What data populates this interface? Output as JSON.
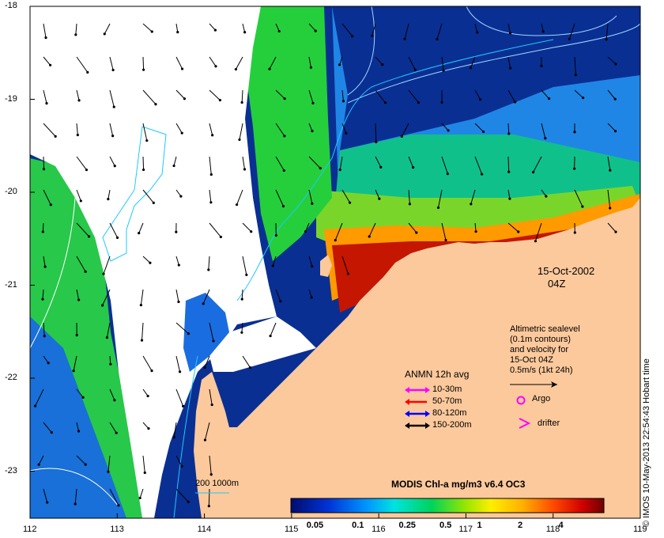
{
  "map": {
    "lon_ticks": [
      "112",
      "113",
      "114",
      "115",
      "116",
      "117",
      "118",
      "119"
    ],
    "lat_ticks": [
      "-18",
      "-19",
      "-20",
      "-21",
      "-22",
      "-23"
    ]
  },
  "annotation": {
    "date": "15-Oct-2002",
    "time": "04Z",
    "altimetry_line1": "Altimetric sealevel",
    "altimetry_line2": "(0.1m contours)",
    "altimetry_line3": "and velocity for",
    "altimetry_line4": "15-Oct 04Z",
    "altimetry_line5": "0.5m/s (1kt 24h)"
  },
  "moorings": {
    "title": "ANMN 12h avg",
    "items": [
      {
        "label": "10-30m",
        "color": "#ff00ff"
      },
      {
        "label": "50-70m",
        "color": "#ff0000"
      },
      {
        "label": "80-120m",
        "color": "#0000ff"
      },
      {
        "label": "150-200m",
        "color": "#000000"
      }
    ]
  },
  "markers": {
    "argo": "Argo",
    "drifter": "drifter"
  },
  "bathymetry_label": "200  1000m",
  "colorbar": {
    "title": "MODIS Chl-a mg/m3 v6.4 OC3",
    "ticks": [
      "0.05",
      "0.1",
      "0.25",
      "0.5",
      "1",
      "2",
      "4"
    ]
  },
  "credit": "© IMOS 10-May-2013 22:54:43 Hobart time",
  "colors": {
    "land": "#fcc99c",
    "deep_ocean": "#062a8a",
    "cloud": "#ffffff"
  }
}
